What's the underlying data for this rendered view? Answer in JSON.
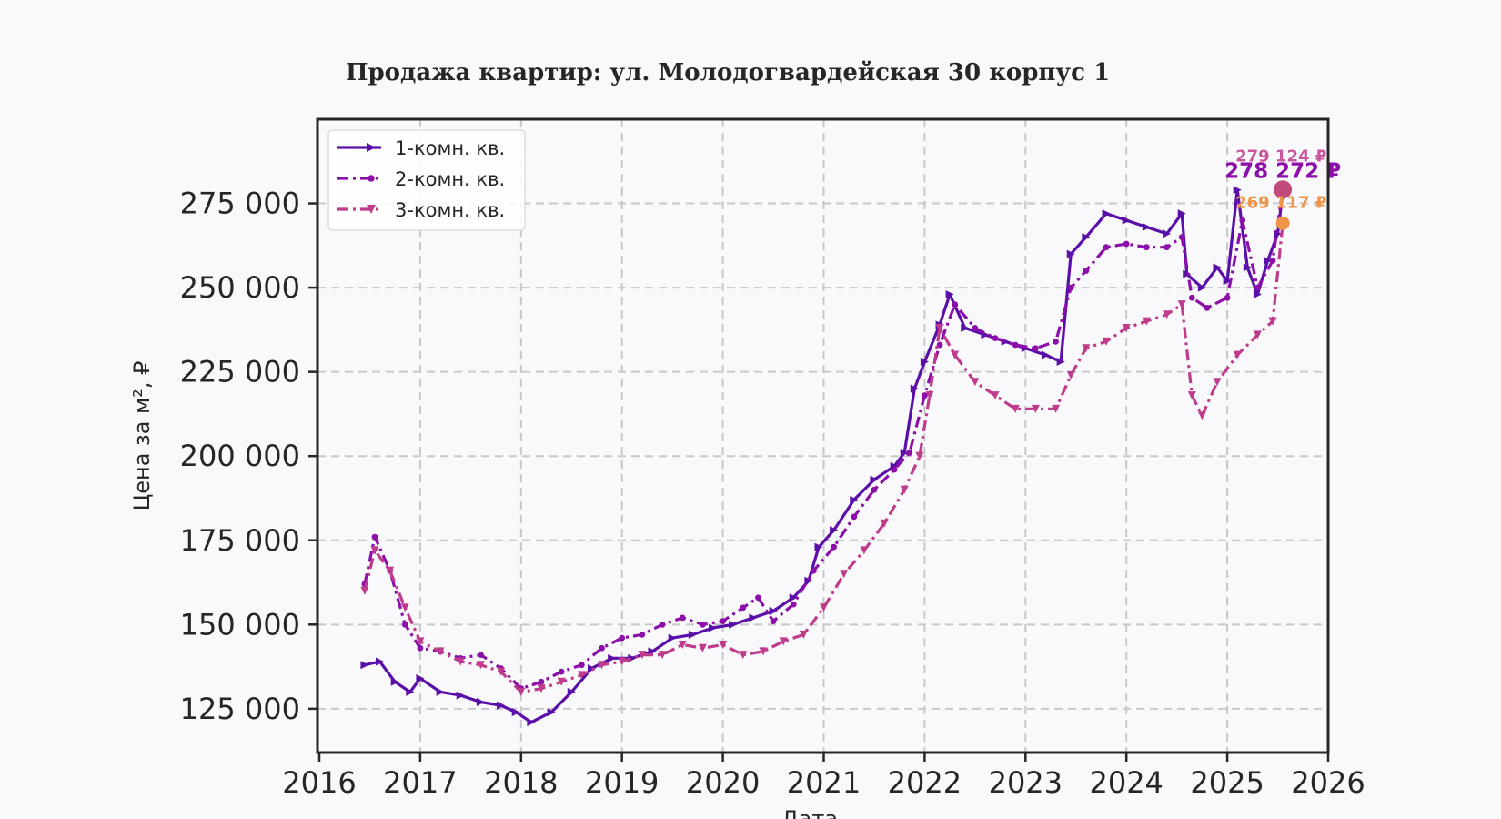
{
  "chart_data": {
    "type": "line",
    "title": "Продажа квартир: ул. Молодогвардейская 30 корпус 1",
    "xlabel": "Дата",
    "ylabel": "Цена за м², ₽",
    "xlim": [
      2016,
      2026
    ],
    "ylim": [
      112000,
      300000
    ],
    "x_ticks": [
      2016,
      2017,
      2018,
      2019,
      2020,
      2021,
      2022,
      2023,
      2024,
      2025,
      2026
    ],
    "x_tick_labels": [
      "2016",
      "2017",
      "2018",
      "2019",
      "2020",
      "2021",
      "2022",
      "2023",
      "2024",
      "2025",
      "2026"
    ],
    "y_ticks": [
      125000,
      150000,
      175000,
      200000,
      225000,
      250000,
      275000
    ],
    "y_tick_labels": [
      "125 000",
      "150 000",
      "175 000",
      "200 000",
      "225 000",
      "250 000",
      "275 000"
    ],
    "grid": true,
    "legend_position": "top-left",
    "series": [
      {
        "name": "1-комн. кв.",
        "color": "#5a0fa8",
        "marker": "triangle-right",
        "dash": "solid",
        "x": [
          2016.45,
          2016.6,
          2016.75,
          2016.9,
          2017.0,
          2017.2,
          2017.4,
          2017.6,
          2017.8,
          2017.95,
          2018.1,
          2018.3,
          2018.5,
          2018.7,
          2018.9,
          2019.1,
          2019.3,
          2019.5,
          2019.7,
          2019.9,
          2020.1,
          2020.3,
          2020.5,
          2020.7,
          2020.85,
          2020.95,
          2021.1,
          2021.3,
          2021.5,
          2021.7,
          2021.8,
          2021.9,
          2022.0,
          2022.15,
          2022.25,
          2022.4,
          2022.6,
          2022.8,
          2023.0,
          2023.2,
          2023.35,
          2023.45,
          2023.6,
          2023.8,
          2024.0,
          2024.2,
          2024.4,
          2024.55,
          2024.6,
          2024.75,
          2024.9,
          2025.0,
          2025.1,
          2025.2,
          2025.3,
          2025.4,
          2025.5,
          2025.55
        ],
        "values": [
          138000,
          139000,
          133000,
          130000,
          134000,
          130000,
          129000,
          127000,
          126000,
          124000,
          121000,
          124000,
          130000,
          137000,
          140000,
          140000,
          142000,
          146000,
          147000,
          149000,
          150000,
          152000,
          154000,
          158000,
          163000,
          173000,
          178000,
          187000,
          193000,
          197000,
          201000,
          220000,
          228000,
          239000,
          248000,
          238000,
          236000,
          234000,
          232000,
          230000,
          228000,
          260000,
          265000,
          272000,
          270000,
          268000,
          266000,
          272000,
          254000,
          250000,
          256000,
          252000,
          279000,
          256000,
          248000,
          258000,
          266000,
          278272
        ]
      },
      {
        "name": "2-комн. кв.",
        "color": "#8b0fa8",
        "marker": "circle",
        "dash": "dash-dot",
        "x": [
          2016.45,
          2016.55,
          2016.7,
          2016.85,
          2017.0,
          2017.2,
          2017.4,
          2017.6,
          2017.8,
          2018.0,
          2018.2,
          2018.4,
          2018.6,
          2018.8,
          2019.0,
          2019.2,
          2019.4,
          2019.6,
          2019.8,
          2020.0,
          2020.2,
          2020.35,
          2020.5,
          2020.7,
          2020.9,
          2021.1,
          2021.3,
          2021.5,
          2021.7,
          2021.85,
          2022.0,
          2022.15,
          2022.3,
          2022.5,
          2022.7,
          2022.9,
          2023.1,
          2023.3,
          2023.45,
          2023.6,
          2023.8,
          2024.0,
          2024.2,
          2024.4,
          2024.55,
          2024.65,
          2024.8,
          2025.0,
          2025.15,
          2025.3,
          2025.45,
          2025.55
        ],
        "values": [
          162000,
          176000,
          166000,
          150000,
          143000,
          142000,
          140000,
          141000,
          137000,
          131000,
          133000,
          136000,
          138000,
          143000,
          146000,
          147000,
          150000,
          152000,
          150000,
          151000,
          155000,
          158000,
          151000,
          156000,
          166000,
          173000,
          182000,
          190000,
          196000,
          201000,
          218000,
          233000,
          245000,
          238000,
          235000,
          233000,
          232000,
          234000,
          250000,
          255000,
          262000,
          263000,
          262000,
          262000,
          265000,
          247000,
          244000,
          247000,
          270000,
          250000,
          258000,
          279124
        ]
      },
      {
        "name": "3-комн. кв.",
        "color": "#bf3b8c",
        "marker": "triangle-down",
        "dash": "dash-dot",
        "x": [
          2016.45,
          2016.55,
          2016.7,
          2016.85,
          2017.0,
          2017.2,
          2017.4,
          2017.6,
          2017.8,
          2018.0,
          2018.2,
          2018.4,
          2018.6,
          2018.8,
          2019.0,
          2019.2,
          2019.4,
          2019.6,
          2019.8,
          2020.0,
          2020.2,
          2020.4,
          2020.6,
          2020.8,
          2021.0,
          2021.2,
          2021.4,
          2021.6,
          2021.8,
          2021.95,
          2022.05,
          2022.15,
          2022.3,
          2022.5,
          2022.7,
          2022.9,
          2023.1,
          2023.3,
          2023.45,
          2023.6,
          2023.8,
          2024.0,
          2024.2,
          2024.4,
          2024.55,
          2024.65,
          2024.75,
          2024.9,
          2025.1,
          2025.3,
          2025.45,
          2025.55
        ],
        "values": [
          160000,
          172000,
          166000,
          155000,
          145000,
          142000,
          139000,
          138000,
          136000,
          130000,
          131000,
          133000,
          135000,
          138000,
          139000,
          141000,
          141000,
          144000,
          143000,
          144000,
          141000,
          142000,
          145000,
          147000,
          155000,
          165000,
          172000,
          180000,
          190000,
          200000,
          218000,
          238000,
          230000,
          222000,
          218000,
          214000,
          214000,
          214000,
          224000,
          232000,
          234000,
          238000,
          240000,
          242000,
          245000,
          218000,
          212000,
          222000,
          230000,
          236000,
          240000,
          269117
        ]
      }
    ],
    "annotations": [
      {
        "text": "279 124 ₽",
        "color": "#bf3b8c"
      },
      {
        "text": "278 272 ₽",
        "color": "#8b0fa8"
      },
      {
        "text": "269 117 ₽",
        "color": "#f0944a"
      }
    ],
    "endpoint_colors": [
      "#c04a7a",
      "#f0944a"
    ]
  }
}
